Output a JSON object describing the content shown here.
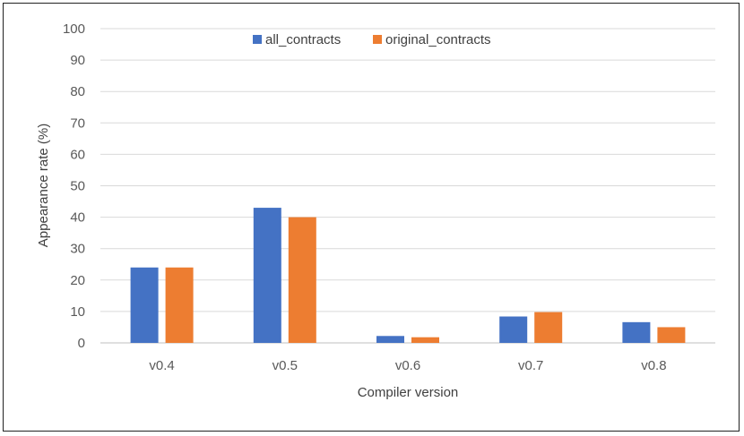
{
  "chart_data": {
    "type": "bar",
    "title": "",
    "xlabel": "Compiler version",
    "ylabel": "Appearance rate (%)",
    "ylim": [
      0,
      100
    ],
    "yticks": [
      0,
      10,
      20,
      30,
      40,
      50,
      60,
      70,
      80,
      90,
      100
    ],
    "categories": [
      "v0.4",
      "v0.5",
      "v0.6",
      "v0.7",
      "v0.8"
    ],
    "series": [
      {
        "name": "all_contracts",
        "color": "#4472C4",
        "values": [
          24,
          43,
          2.2,
          8.4,
          6.6
        ]
      },
      {
        "name": "original_contracts",
        "color": "#ED7D31",
        "values": [
          24,
          40,
          1.8,
          9.8,
          5
        ]
      }
    ],
    "grid": true,
    "legend_position": "top-center"
  }
}
